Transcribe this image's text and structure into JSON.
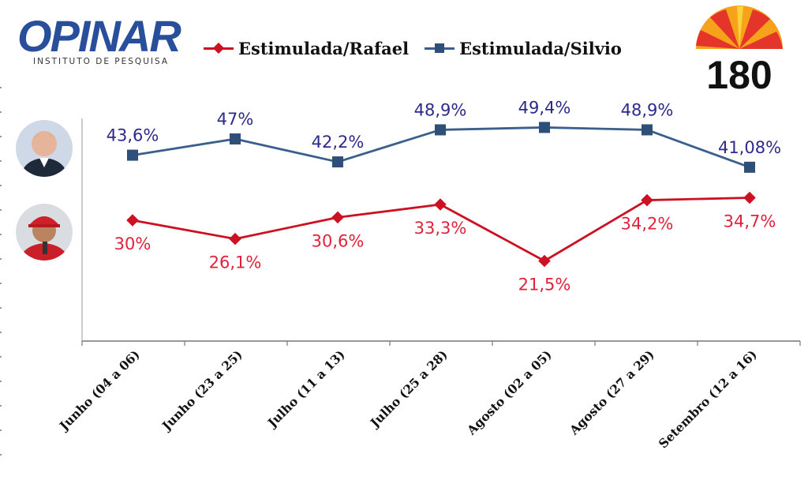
{
  "brand": {
    "name": "OPINAR",
    "tagline": "INSTITUTO DE PESQUISA",
    "partner": "180",
    "brand_color": "#2a4f9a"
  },
  "colors": {
    "rafael": "#cc1122",
    "silvio": "#3a5f8c",
    "label_red": "#e2223b",
    "label_navy": "#2e2a8c"
  },
  "chart_data": {
    "type": "line",
    "categories": [
      "Junho (04 a 06)",
      "Junho (23 a 25)",
      "Julho (11 a 13)",
      "Julho (25 a 28)",
      "Agosto (02 a 05)",
      "Agosto (27 a 29)",
      "Setembro (12 a 16)"
    ],
    "series": [
      {
        "name": "Estimulada/Rafael",
        "marker": "diamond",
        "color": "#cc1122",
        "values": [
          30,
          26.1,
          30.6,
          33.3,
          21.5,
          34.2,
          34.7
        ],
        "labels": [
          "30%",
          "26,1%",
          "30,6%",
          "33,3%",
          "21,5%",
          "34,2%",
          "34,7%"
        ]
      },
      {
        "name": "Estimulada/Silvio",
        "marker": "square",
        "color": "#3a5f8c",
        "values": [
          43.6,
          47,
          42.2,
          48.9,
          49.4,
          48.9,
          41.08
        ],
        "labels": [
          "43,6%",
          "47%",
          "42,2%",
          "48,9%",
          "49,4%",
          "48,9%",
          "41,08%"
        ]
      }
    ],
    "legend_position": "top",
    "grid": false
  }
}
